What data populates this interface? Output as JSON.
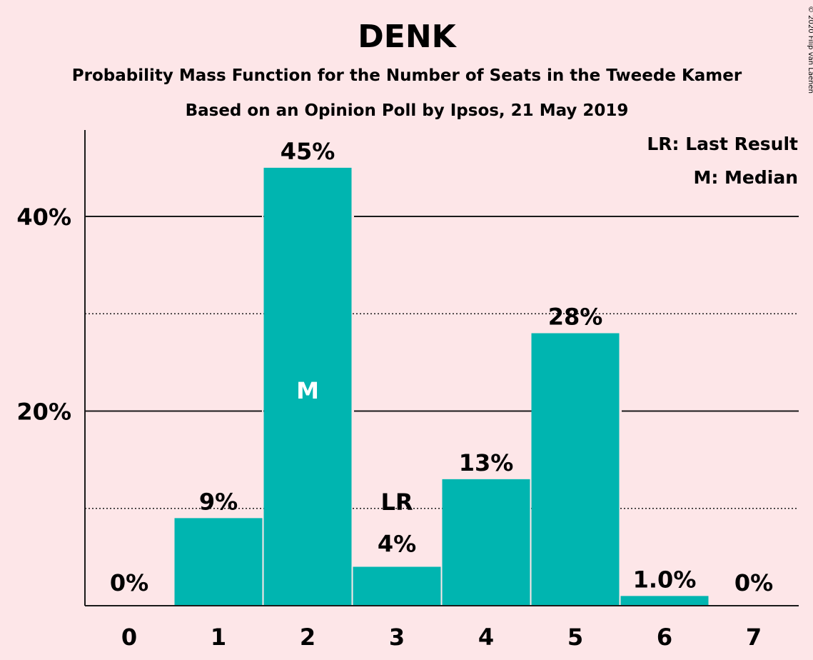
{
  "title": "DENK",
  "subtitle1": "Probability Mass Function for the Number of Seats in the Tweede Kamer",
  "subtitle2": "Based on an Opinion Poll by Ipsos, 21 May 2019",
  "copyright": "© 2020 Filip van Laenen",
  "legend": {
    "last_result": "LR: Last Result",
    "median": "M: Median"
  },
  "colors": {
    "bar": "#00b5b0",
    "background": "#fde6e8",
    "text": "#1a1a1a"
  },
  "chart_data": {
    "type": "bar",
    "categories": [
      "0",
      "1",
      "2",
      "3",
      "4",
      "5",
      "6",
      "7"
    ],
    "values": [
      0,
      9,
      45,
      4,
      13,
      28,
      1.0,
      0
    ],
    "value_labels": [
      "0%",
      "9%",
      "45%",
      "4%",
      "13%",
      "28%",
      "1.0%",
      "0%"
    ],
    "ylim": [
      0,
      49
    ],
    "y_major_ticks": [
      20,
      40
    ],
    "y_tick_labels": [
      "20%",
      "40%"
    ],
    "y_minor_ticks": [
      10,
      30
    ],
    "grid": true,
    "legend_position": "top-right",
    "median_index": 2,
    "median_marker": "M",
    "last_result_index": 3,
    "last_result_marker": "LR"
  }
}
